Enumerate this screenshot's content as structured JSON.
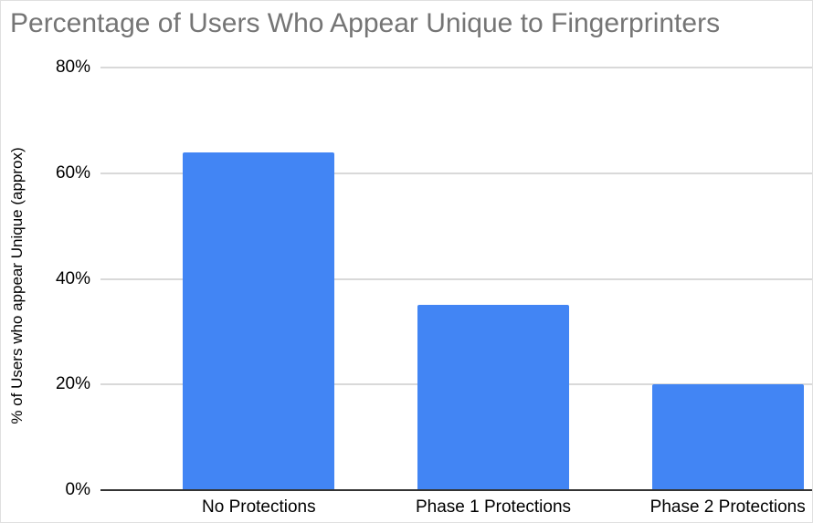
{
  "window": {
    "background": "#ffffff",
    "border_color": "#e0e0e0"
  },
  "chart_data": {
    "type": "bar",
    "title": "Percentage of Users Who Appear Unique to Fingerprinters",
    "categories": [
      "No Protections",
      "Phase 1 Protections",
      "Phase 2 Protections"
    ],
    "values": [
      64,
      35,
      20
    ],
    "xlabel": "",
    "ylabel": "% of Users who appear Unique (approx)",
    "ylim": [
      0,
      80
    ],
    "yticks": [
      {
        "value": 0,
        "label": "0%"
      },
      {
        "value": 20,
        "label": "20%"
      },
      {
        "value": 40,
        "label": "40%"
      },
      {
        "value": 60,
        "label": "60%"
      },
      {
        "value": 80,
        "label": "80%"
      }
    ],
    "grid": true,
    "legend": false,
    "colors": {
      "bar": "#4285F4",
      "title_text": "#757575",
      "axis_text": "#000000",
      "gridline": "#d9d9d9",
      "baseline": "#333333"
    }
  }
}
